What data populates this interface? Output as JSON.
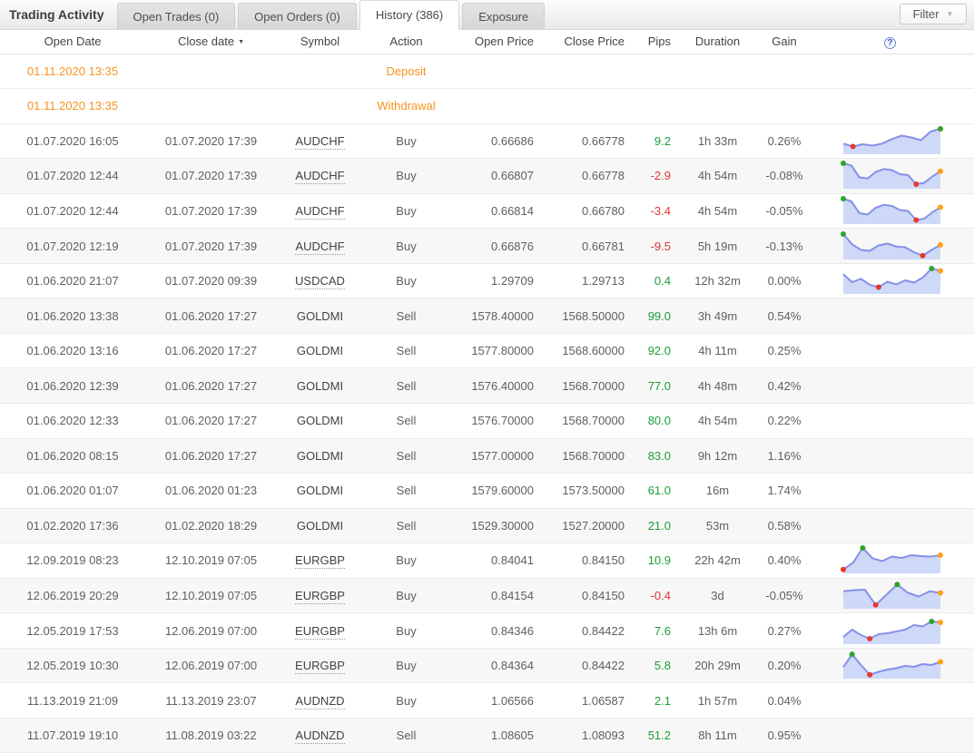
{
  "header": {
    "title": "Trading Activity",
    "tabs": [
      {
        "label": "Open Trades (0)",
        "active": false
      },
      {
        "label": "Open Orders (0)",
        "active": false
      },
      {
        "label": "History (386)",
        "active": true
      },
      {
        "label": "Exposure",
        "active": false
      }
    ],
    "filter": {
      "label": "Filter",
      "dropdown_icon": "▼"
    }
  },
  "table": {
    "columns": [
      "Open Date",
      "Close date",
      "Symbol",
      "Action",
      "Open Price",
      "Close Price",
      "Pips",
      "Duration",
      "Gain"
    ],
    "sort": {
      "column": "Close date",
      "direction": "desc",
      "icon": "▼"
    },
    "help_icon": "?",
    "rows": [
      {
        "type": "deposit",
        "open_date": "01.11.2020 13:35",
        "close_date": "",
        "symbol": "",
        "symbol_link": false,
        "action": "Deposit",
        "open_price": "",
        "close_price": "",
        "pips": "",
        "duration": "",
        "gain": "",
        "spark": null
      },
      {
        "type": "withdrawal",
        "open_date": "01.11.2020 13:35",
        "close_date": "",
        "symbol": "",
        "symbol_link": false,
        "action": "Withdrawal",
        "open_price": "",
        "close_price": "",
        "pips": "",
        "duration": "",
        "gain": "",
        "spark": null
      },
      {
        "type": "trade",
        "open_date": "01.07.2020 16:05",
        "close_date": "01.07.2020 17:39",
        "symbol": "AUDCHF",
        "symbol_link": true,
        "action": "Buy",
        "open_price": "0.66686",
        "close_price": "0.66778",
        "pips": "9.2",
        "duration": "1h 33m",
        "gain": "0.26%",
        "spark": [
          35,
          22,
          32,
          26,
          35,
          55,
          70,
          62,
          50,
          88,
          100
        ]
      },
      {
        "type": "trade",
        "open_date": "01.07.2020 12:44",
        "close_date": "01.07.2020 17:39",
        "symbol": "AUDCHF",
        "symbol_link": true,
        "action": "Buy",
        "open_price": "0.66807",
        "close_price": "0.66778",
        "pips": "-2.9",
        "duration": "4h 54m",
        "gain": "-0.08%",
        "spark": [
          100,
          90,
          38,
          33,
          62,
          75,
          70,
          52,
          48,
          8,
          14,
          42,
          65
        ]
      },
      {
        "type": "trade",
        "open_date": "01.07.2020 12:44",
        "close_date": "01.07.2020 17:39",
        "symbol": "AUDCHF",
        "symbol_link": true,
        "action": "Buy",
        "open_price": "0.66814",
        "close_price": "0.66780",
        "pips": "-3.4",
        "duration": "4h 54m",
        "gain": "-0.05%",
        "spark": [
          100,
          88,
          36,
          30,
          60,
          73,
          68,
          50,
          46,
          6,
          12,
          40,
          62
        ]
      },
      {
        "type": "trade",
        "open_date": "01.07.2020 12:19",
        "close_date": "01.07.2020 17:39",
        "symbol": "AUDCHF",
        "symbol_link": true,
        "action": "Buy",
        "open_price": "0.66876",
        "close_price": "0.66781",
        "pips": "-9.5",
        "duration": "5h 19m",
        "gain": "-0.13%",
        "spark": [
          100,
          55,
          30,
          26,
          50,
          58,
          45,
          42,
          20,
          5,
          30,
          52
        ]
      },
      {
        "type": "trade",
        "open_date": "01.06.2020 21:07",
        "close_date": "01.07.2020 09:39",
        "symbol": "USDCAD",
        "symbol_link": true,
        "action": "Buy",
        "open_price": "1.29709",
        "close_price": "1.29713",
        "pips": "0.4",
        "duration": "12h 32m",
        "gain": "0.00%",
        "spark": [
          75,
          40,
          55,
          28,
          18,
          42,
          30,
          48,
          38,
          60,
          100,
          90
        ]
      },
      {
        "type": "trade",
        "open_date": "01.06.2020 13:38",
        "close_date": "01.06.2020 17:27",
        "symbol": "GOLDMI",
        "symbol_link": false,
        "action": "Sell",
        "open_price": "1578.40000",
        "close_price": "1568.50000",
        "pips": "99.0",
        "duration": "3h 49m",
        "gain": "0.54%",
        "spark": null
      },
      {
        "type": "trade",
        "open_date": "01.06.2020 13:16",
        "close_date": "01.06.2020 17:27",
        "symbol": "GOLDMI",
        "symbol_link": false,
        "action": "Sell",
        "open_price": "1577.80000",
        "close_price": "1568.60000",
        "pips": "92.0",
        "duration": "4h 11m",
        "gain": "0.25%",
        "spark": null
      },
      {
        "type": "trade",
        "open_date": "01.06.2020 12:39",
        "close_date": "01.06.2020 17:27",
        "symbol": "GOLDMI",
        "symbol_link": false,
        "action": "Sell",
        "open_price": "1576.40000",
        "close_price": "1568.70000",
        "pips": "77.0",
        "duration": "4h 48m",
        "gain": "0.42%",
        "spark": null
      },
      {
        "type": "trade",
        "open_date": "01.06.2020 12:33",
        "close_date": "01.06.2020 17:27",
        "symbol": "GOLDMI",
        "symbol_link": false,
        "action": "Sell",
        "open_price": "1576.70000",
        "close_price": "1568.70000",
        "pips": "80.0",
        "duration": "4h 54m",
        "gain": "0.22%",
        "spark": null
      },
      {
        "type": "trade",
        "open_date": "01.06.2020 08:15",
        "close_date": "01.06.2020 17:27",
        "symbol": "GOLDMI",
        "symbol_link": false,
        "action": "Sell",
        "open_price": "1577.00000",
        "close_price": "1568.70000",
        "pips": "83.0",
        "duration": "9h 12m",
        "gain": "1.16%",
        "spark": null
      },
      {
        "type": "trade",
        "open_date": "01.06.2020 01:07",
        "close_date": "01.06.2020 01:23",
        "symbol": "GOLDMI",
        "symbol_link": false,
        "action": "Sell",
        "open_price": "1579.60000",
        "close_price": "1573.50000",
        "pips": "61.0",
        "duration": "16m",
        "gain": "1.74%",
        "spark": null
      },
      {
        "type": "trade",
        "open_date": "01.02.2020 17:36",
        "close_date": "01.02.2020 18:29",
        "symbol": "GOLDMI",
        "symbol_link": false,
        "action": "Sell",
        "open_price": "1529.30000",
        "close_price": "1527.20000",
        "pips": "21.0",
        "duration": "53m",
        "gain": "0.58%",
        "spark": null
      },
      {
        "type": "trade",
        "open_date": "12.09.2019 08:23",
        "close_date": "12.10.2019 07:05",
        "symbol": "EURGBP",
        "symbol_link": true,
        "action": "Buy",
        "open_price": "0.84041",
        "close_price": "0.84150",
        "pips": "10.9",
        "duration": "22h 42m",
        "gain": "0.40%",
        "spark": [
          5,
          35,
          100,
          55,
          42,
          62,
          56,
          68,
          64,
          62,
          68
        ]
      },
      {
        "type": "trade",
        "open_date": "12.06.2019 20:29",
        "close_date": "12.10.2019 07:05",
        "symbol": "EURGBP",
        "symbol_link": true,
        "action": "Buy",
        "open_price": "0.84154",
        "close_price": "0.84150",
        "pips": "-0.4",
        "duration": "3d",
        "gain": "-0.05%",
        "spark": [
          65,
          70,
          72,
          5,
          50,
          95,
          58,
          42,
          65,
          58
        ]
      },
      {
        "type": "trade",
        "open_date": "12.05.2019 17:53",
        "close_date": "12.06.2019 07:00",
        "symbol": "EURGBP",
        "symbol_link": true,
        "action": "Buy",
        "open_price": "0.84346",
        "close_price": "0.84422",
        "pips": "7.6",
        "duration": "13h 6m",
        "gain": "0.27%",
        "spark": [
          20,
          52,
          28,
          12,
          32,
          36,
          44,
          52,
          72,
          66,
          88,
          84
        ]
      },
      {
        "type": "trade",
        "open_date": "12.05.2019 10:30",
        "close_date": "12.06.2019 07:00",
        "symbol": "EURGBP",
        "symbol_link": true,
        "action": "Buy",
        "open_price": "0.84364",
        "close_price": "0.84422",
        "pips": "5.8",
        "duration": "20h 29m",
        "gain": "0.20%",
        "spark": [
          38,
          95,
          48,
          5,
          18,
          28,
          34,
          44,
          40,
          52,
          48,
          62
        ]
      },
      {
        "type": "trade",
        "open_date": "11.13.2019 21:09",
        "close_date": "11.13.2019 23:07",
        "symbol": "AUDNZD",
        "symbol_link": true,
        "action": "Buy",
        "open_price": "1.06566",
        "close_price": "1.06587",
        "pips": "2.1",
        "duration": "1h 57m",
        "gain": "0.04%",
        "spark": null
      },
      {
        "type": "trade",
        "open_date": "11.07.2019 19:10",
        "close_date": "11.08.2019 03:22",
        "symbol": "AUDNZD",
        "symbol_link": true,
        "action": "Sell",
        "open_price": "1.08605",
        "close_price": "1.08093",
        "pips": "51.2",
        "duration": "8h 11m",
        "gain": "0.95%",
        "spark": null
      }
    ]
  },
  "colors": {
    "orange": "#f7941e",
    "green": "#1b9e34",
    "red": "#e23434",
    "spark_line": "#8690e8",
    "spark_fill": "#cdd9f6",
    "dot_green": "#2fa42c",
    "dot_red": "#e8382c",
    "dot_orange": "#ffa018"
  }
}
